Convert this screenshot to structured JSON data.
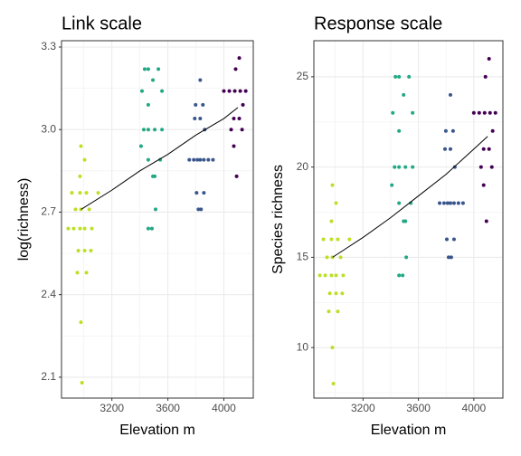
{
  "chart_data": [
    {
      "type": "scatter",
      "title": "Link scale",
      "xlabel": "Elevation m",
      "ylabel": "log(richness)",
      "xlim": [
        2840,
        4210
      ],
      "ylim": [
        2.024,
        3.323
      ],
      "xticks": [
        3200,
        3600,
        4000
      ],
      "yticks": [
        2.1,
        2.4,
        2.7,
        {
          "value": 3,
          "label": "3.0"
        },
        3.3
      ],
      "xminor": [
        3000,
        3400,
        3800
      ],
      "yminor": [
        2.25,
        2.55,
        2.85,
        3.15
      ],
      "grid": true,
      "series": [
        {
          "color": "#bddf26",
          "x": [
            2979,
            3005,
            2972,
            2914,
            2972,
            3018,
            3102,
            2940,
            2979,
            3038,
            2888,
            2927,
            2972,
            3005,
            3057,
            2960,
            3005,
            3050,
            2953,
            3018,
            2979,
            2986
          ],
          "values": [
            2.94,
            2.89,
            2.83,
            2.77,
            2.77,
            2.77,
            2.77,
            2.71,
            2.71,
            2.71,
            2.64,
            2.64,
            2.64,
            2.64,
            2.64,
            2.56,
            2.56,
            2.56,
            2.48,
            2.48,
            2.3,
            2.08
          ]
        },
        {
          "color": "#22a884",
          "x": [
            3434,
            3460,
            3532,
            3493,
            3415,
            3558,
            3460,
            3428,
            3460,
            3506,
            3558,
            3408,
            3460,
            3545,
            3493,
            3506,
            3512,
            3460,
            3486
          ],
          "values": [
            3.22,
            3.22,
            3.22,
            3.18,
            3.14,
            3.14,
            3.09,
            3.0,
            3.0,
            3.0,
            3.0,
            2.94,
            2.89,
            2.89,
            2.83,
            2.83,
            2.71,
            2.64,
            2.64
          ]
        },
        {
          "color": "#39568c",
          "x": [
            3831,
            3798,
            3850,
            3792,
            3831,
            3863,
            3753,
            3785,
            3811,
            3831,
            3857,
            3889,
            3922,
            3805,
            3857,
            3818,
            3837
          ],
          "values": [
            3.18,
            3.09,
            3.09,
            3.04,
            3.04,
            3.0,
            2.89,
            2.89,
            2.89,
            2.89,
            2.89,
            2.89,
            2.89,
            2.77,
            2.77,
            2.71,
            2.71
          ]
        },
        {
          "color": "#440154",
          "x": [
            4110,
            4084,
            4000,
            4039,
            4078,
            4117,
            4156,
            4136,
            4071,
            4110,
            4052,
            4130,
            4071,
            4091
          ],
          "values": [
            3.26,
            3.22,
            3.14,
            3.14,
            3.14,
            3.14,
            3.14,
            3.09,
            3.04,
            3.04,
            3.0,
            3.0,
            2.94,
            2.83
          ]
        }
      ],
      "fit": {
        "color": "#000000",
        "x": [
          2980,
          3200,
          3400,
          3600,
          3800,
          4000,
          4100
        ],
        "values": [
          2.71,
          2.78,
          2.85,
          2.91,
          2.98,
          3.04,
          3.08
        ]
      }
    },
    {
      "type": "scatter",
      "title": "Response scale",
      "xlabel": "Elevation m",
      "ylabel": "Species richness",
      "xlim": [
        2845,
        4210
      ],
      "ylim": [
        7.2,
        27.0
      ],
      "xticks": [
        3200,
        3600,
        4000
      ],
      "yticks": [
        10,
        15,
        20,
        25
      ],
      "xminor": [
        3000,
        3400,
        3800
      ],
      "yminor": [
        7.5,
        12.5,
        17.5,
        22.5
      ],
      "grid": true,
      "series": [
        {
          "color": "#bddf26",
          "x": [
            2979,
            3005,
            2972,
            2914,
            2972,
            3018,
            3102,
            2940,
            2979,
            3038,
            2888,
            2927,
            2972,
            3005,
            3057,
            2960,
            3005,
            3050,
            2953,
            3018,
            2979,
            2986
          ],
          "values": [
            19,
            18,
            17,
            16,
            16,
            16,
            16,
            15,
            15,
            15,
            14,
            14,
            14,
            14,
            14,
            13,
            13,
            13,
            12,
            12,
            10,
            8
          ]
        },
        {
          "color": "#22a884",
          "x": [
            3434,
            3460,
            3532,
            3493,
            3415,
            3558,
            3460,
            3428,
            3460,
            3506,
            3558,
            3408,
            3460,
            3545,
            3493,
            3506,
            3512,
            3460,
            3486
          ],
          "values": [
            25,
            25,
            25,
            24,
            23,
            23,
            22,
            20,
            20,
            20,
            20,
            19,
            18,
            18,
            17,
            17,
            15,
            14,
            14
          ]
        },
        {
          "color": "#39568c",
          "x": [
            3831,
            3798,
            3850,
            3792,
            3831,
            3863,
            3753,
            3785,
            3811,
            3831,
            3857,
            3889,
            3922,
            3805,
            3857,
            3818,
            3837
          ],
          "values": [
            24,
            22,
            22,
            21,
            21,
            20,
            18,
            18,
            18,
            18,
            18,
            18,
            18,
            16,
            16,
            15,
            15
          ]
        },
        {
          "color": "#440154",
          "x": [
            4110,
            4084,
            4000,
            4039,
            4078,
            4117,
            4156,
            4136,
            4071,
            4110,
            4052,
            4130,
            4071,
            4091
          ],
          "values": [
            26,
            25,
            23,
            23,
            23,
            23,
            23,
            22,
            21,
            21,
            20,
            20,
            19,
            17
          ]
        }
      ],
      "fit": {
        "color": "#000000",
        "x": [
          2980,
          3200,
          3400,
          3600,
          3800,
          4000,
          4100
        ],
        "values": [
          15.0,
          16.1,
          17.2,
          18.4,
          19.6,
          21.0,
          21.7
        ]
      }
    }
  ]
}
